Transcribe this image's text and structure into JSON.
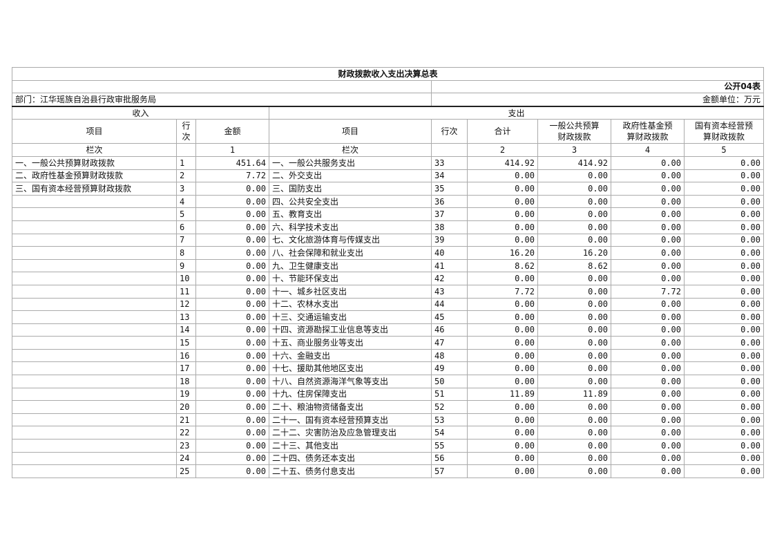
{
  "title": "财政拨款收入支出决算总表",
  "table_code": "公开04表",
  "department": "部门：江华瑶族自治县行政审批服务局",
  "unit": "金额单位：万元",
  "income_header": "收入",
  "expense_header": "支出",
  "columns": {
    "item": "项目",
    "row_no_income": "行\n次",
    "amount": "金额",
    "item2": "项目",
    "row_no": "行次",
    "total": "合计",
    "general": "一般公共预算\n财政拨款",
    "fund": "政府性基金预\n算财政拨款",
    "state": "国有资本经营预\n算财政拨款"
  },
  "lanci": {
    "label": "栏次",
    "c1": "1",
    "label2": "栏次",
    "c2": "2",
    "c3": "3",
    "c4": "4",
    "c5": "5"
  },
  "rows": [
    {
      "in_item": "一、一般公共预算财政拨款",
      "in_no": "1",
      "in_amt": "451.64",
      "ex_item": "一、一般公共服务支出",
      "ex_no": "33",
      "total": "414.92",
      "general": "414.92",
      "fund": "0.00",
      "state": "0.00"
    },
    {
      "in_item": "二、政府性基金预算财政拨款",
      "in_no": "2",
      "in_amt": "7.72",
      "ex_item": "二、外交支出",
      "ex_no": "34",
      "total": "0.00",
      "general": "0.00",
      "fund": "0.00",
      "state": "0.00"
    },
    {
      "in_item": "三、国有资本经营预算财政拨款",
      "in_no": "3",
      "in_amt": "0.00",
      "ex_item": "三、国防支出",
      "ex_no": "35",
      "total": "0.00",
      "general": "0.00",
      "fund": "0.00",
      "state": "0.00"
    },
    {
      "in_item": "",
      "in_no": "4",
      "in_amt": "0.00",
      "ex_item": "四、公共安全支出",
      "ex_no": "36",
      "total": "0.00",
      "general": "0.00",
      "fund": "0.00",
      "state": "0.00"
    },
    {
      "in_item": "",
      "in_no": "5",
      "in_amt": "0.00",
      "ex_item": "五、教育支出",
      "ex_no": "37",
      "total": "0.00",
      "general": "0.00",
      "fund": "0.00",
      "state": "0.00"
    },
    {
      "in_item": "",
      "in_no": "6",
      "in_amt": "0.00",
      "ex_item": "六、科学技术支出",
      "ex_no": "38",
      "total": "0.00",
      "general": "0.00",
      "fund": "0.00",
      "state": "0.00"
    },
    {
      "in_item": "",
      "in_no": "7",
      "in_amt": "0.00",
      "ex_item": "七、文化旅游体育与传媒支出",
      "ex_no": "39",
      "total": "0.00",
      "general": "0.00",
      "fund": "0.00",
      "state": "0.00"
    },
    {
      "in_item": "",
      "in_no": "8",
      "in_amt": "0.00",
      "ex_item": "八、社会保障和就业支出",
      "ex_no": "40",
      "total": "16.20",
      "general": "16.20",
      "fund": "0.00",
      "state": "0.00"
    },
    {
      "in_item": "",
      "in_no": "9",
      "in_amt": "0.00",
      "ex_item": "九、卫生健康支出",
      "ex_no": "41",
      "total": "8.62",
      "general": "8.62",
      "fund": "0.00",
      "state": "0.00"
    },
    {
      "in_item": "",
      "in_no": "10",
      "in_amt": "0.00",
      "ex_item": "十、节能环保支出",
      "ex_no": "42",
      "total": "0.00",
      "general": "0.00",
      "fund": "0.00",
      "state": "0.00"
    },
    {
      "in_item": "",
      "in_no": "11",
      "in_amt": "0.00",
      "ex_item": "十一、城乡社区支出",
      "ex_no": "43",
      "total": "7.72",
      "general": "0.00",
      "fund": "7.72",
      "state": "0.00"
    },
    {
      "in_item": "",
      "in_no": "12",
      "in_amt": "0.00",
      "ex_item": "十二、农林水支出",
      "ex_no": "44",
      "total": "0.00",
      "general": "0.00",
      "fund": "0.00",
      "state": "0.00"
    },
    {
      "in_item": "",
      "in_no": "13",
      "in_amt": "0.00",
      "ex_item": "十三、交通运输支出",
      "ex_no": "45",
      "total": "0.00",
      "general": "0.00",
      "fund": "0.00",
      "state": "0.00"
    },
    {
      "in_item": "",
      "in_no": "14",
      "in_amt": "0.00",
      "ex_item": "十四、资源勘探工业信息等支出",
      "ex_no": "46",
      "total": "0.00",
      "general": "0.00",
      "fund": "0.00",
      "state": "0.00"
    },
    {
      "in_item": "",
      "in_no": "15",
      "in_amt": "0.00",
      "ex_item": "十五、商业服务业等支出",
      "ex_no": "47",
      "total": "0.00",
      "general": "0.00",
      "fund": "0.00",
      "state": "0.00"
    },
    {
      "in_item": "",
      "in_no": "16",
      "in_amt": "0.00",
      "ex_item": "十六、金融支出",
      "ex_no": "48",
      "total": "0.00",
      "general": "0.00",
      "fund": "0.00",
      "state": "0.00"
    },
    {
      "in_item": "",
      "in_no": "17",
      "in_amt": "0.00",
      "ex_item": "十七、援助其他地区支出",
      "ex_no": "49",
      "total": "0.00",
      "general": "0.00",
      "fund": "0.00",
      "state": "0.00"
    },
    {
      "in_item": "",
      "in_no": "18",
      "in_amt": "0.00",
      "ex_item": "十八、自然资源海洋气象等支出",
      "ex_no": "50",
      "total": "0.00",
      "general": "0.00",
      "fund": "0.00",
      "state": "0.00"
    },
    {
      "in_item": "",
      "in_no": "19",
      "in_amt": "0.00",
      "ex_item": "十九、住房保障支出",
      "ex_no": "51",
      "total": "11.89",
      "general": "11.89",
      "fund": "0.00",
      "state": "0.00"
    },
    {
      "in_item": "",
      "in_no": "20",
      "in_amt": "0.00",
      "ex_item": "二十、粮油物资储备支出",
      "ex_no": "52",
      "total": "0.00",
      "general": "0.00",
      "fund": "0.00",
      "state": "0.00"
    },
    {
      "in_item": "",
      "in_no": "21",
      "in_amt": "0.00",
      "ex_item": "二十一、国有资本经营预算支出",
      "ex_no": "53",
      "total": "0.00",
      "general": "0.00",
      "fund": "0.00",
      "state": "0.00"
    },
    {
      "in_item": "",
      "in_no": "22",
      "in_amt": "0.00",
      "ex_item": "二十二、灾害防治及应急管理支出",
      "ex_no": "54",
      "total": "0.00",
      "general": "0.00",
      "fund": "0.00",
      "state": "0.00"
    },
    {
      "in_item": "",
      "in_no": "23",
      "in_amt": "0.00",
      "ex_item": "二十三、其他支出",
      "ex_no": "55",
      "total": "0.00",
      "general": "0.00",
      "fund": "0.00",
      "state": "0.00"
    },
    {
      "in_item": "",
      "in_no": "24",
      "in_amt": "0.00",
      "ex_item": "二十四、债务还本支出",
      "ex_no": "56",
      "total": "0.00",
      "general": "0.00",
      "fund": "0.00",
      "state": "0.00"
    },
    {
      "in_item": "",
      "in_no": "25",
      "in_amt": "0.00",
      "ex_item": "二十五、债务付息支出",
      "ex_no": "57",
      "total": "0.00",
      "general": "0.00",
      "fund": "0.00",
      "state": "0.00"
    }
  ]
}
